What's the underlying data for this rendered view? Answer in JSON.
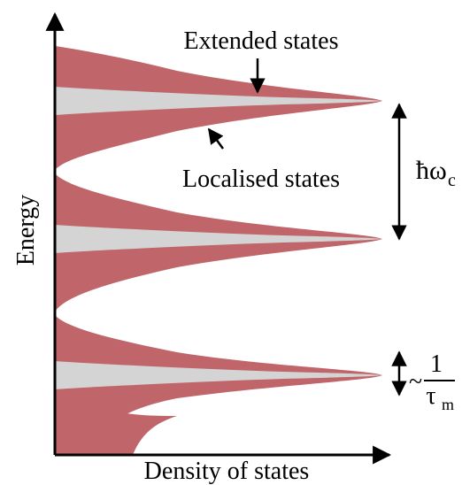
{
  "labels": {
    "extended_states": "Extended states",
    "localised_states": "Localised states",
    "y_axis": "Energy",
    "x_axis": "Density of states",
    "spacing_symbol": "ħω",
    "spacing_subscript": "c",
    "width_prefix": "~",
    "width_numerator": "1",
    "width_denominator": "τ",
    "width_subscript": "m"
  },
  "colors": {
    "localised_fill": "#c0656a",
    "extended_fill": "#d4d4d4",
    "axes": "#000000"
  }
}
